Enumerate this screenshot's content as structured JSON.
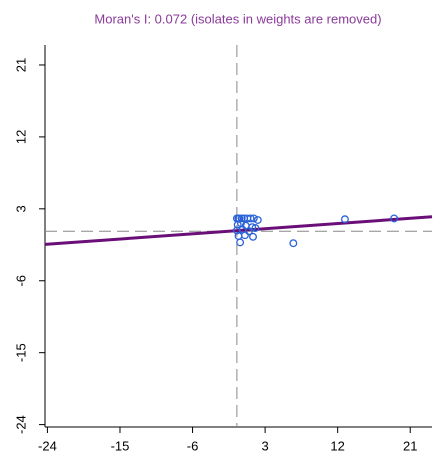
{
  "chart_data": {
    "type": "scatter",
    "title": "Moran's I: 0.072 (isolates in weights are removed)",
    "xlim": [
      -24.3,
      23.7
    ],
    "ylim": [
      -24.3,
      23.5
    ],
    "xticks": [
      -24,
      -15,
      -6,
      3,
      12,
      21
    ],
    "yticks": [
      -24,
      -15,
      -6,
      3,
      12,
      21
    ],
    "series": [
      {
        "color": "#2a62d8",
        "x": [
          -0.5,
          -0.3,
          -0.2,
          0.1,
          0.4,
          0.8,
          1.2,
          1.6,
          2.1,
          -0.4,
          0.0,
          0.6,
          1.4,
          -0.5,
          0.2,
          1.0,
          1.8,
          -0.3,
          0.5,
          1.5,
          -0.1,
          6.5,
          12.9,
          19.0
        ],
        "y": [
          1.8,
          1.8,
          1.8,
          1.8,
          1.8,
          1.8,
          1.8,
          1.8,
          1.6,
          1.0,
          1.2,
          0.9,
          0.7,
          0.3,
          0.4,
          0.2,
          0.6,
          -0.4,
          -0.3,
          -0.5,
          -1.2,
          -1.3,
          1.7,
          1.8
        ]
      }
    ],
    "regression": {
      "color": "#6b0f78",
      "slope": 0.072,
      "intercept": 0.3
    },
    "reference_lines": {
      "x": -0.5,
      "y": 0.2,
      "color": "#888888"
    },
    "title_color": "#8a3a9a"
  }
}
